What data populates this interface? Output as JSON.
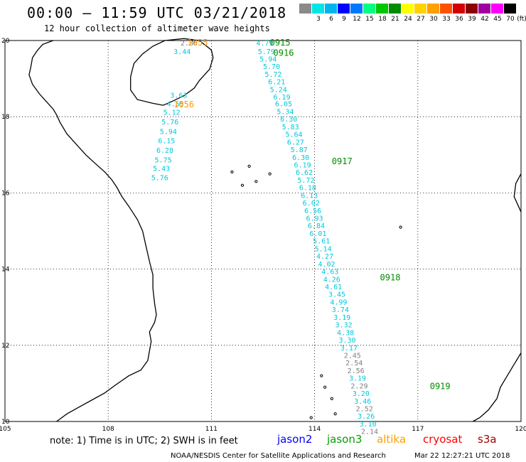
{
  "header": {
    "title": "00:00 – 11:59 UTC 03/21/2018",
    "subtitle": "12 hour collection of altimeter wave heights"
  },
  "colorbar": {
    "items": [
      {
        "label": "",
        "color": "#8a8a8a"
      },
      {
        "label": "3",
        "color": "#00e6e6"
      },
      {
        "label": "6",
        "color": "#00b4f0"
      },
      {
        "label": "9",
        "color": "#0000ff"
      },
      {
        "label": "12",
        "color": "#0078ff"
      },
      {
        "label": "15",
        "color": "#00ff80"
      },
      {
        "label": "18",
        "color": "#00c800"
      },
      {
        "label": "21",
        "color": "#008c00"
      },
      {
        "label": "24",
        "color": "#ffff00"
      },
      {
        "label": "27",
        "color": "#ffd200"
      },
      {
        "label": "30",
        "color": "#ffa000"
      },
      {
        "label": "33",
        "color": "#ff5000"
      },
      {
        "label": "36",
        "color": "#d20000"
      },
      {
        "label": "39",
        "color": "#8c0000"
      },
      {
        "label": "42",
        "color": "#a000a0"
      },
      {
        "label": "45",
        "color": "#ff00ff"
      },
      {
        "label": "70",
        "color": "#000000"
      }
    ],
    "unit": "(ft)"
  },
  "map": {
    "lon_ticks": [
      "105",
      "108",
      "111",
      "114",
      "117",
      "120"
    ],
    "lat_ticks": [
      "20",
      "18",
      "16",
      "14",
      "12",
      "10"
    ],
    "lon_range": [
      105,
      120
    ],
    "lat_range": [
      10,
      20
    ],
    "pass_labels": [
      {
        "text": "1055",
        "lon": 110.3,
        "lat": 19.87,
        "color": "#ff9900"
      },
      {
        "text": "1056",
        "lon": 109.9,
        "lat": 18.25,
        "color": "#ff9900"
      },
      {
        "text": "0915",
        "lon": 112.7,
        "lat": 19.87,
        "color": "#008c00"
      },
      {
        "text": "0916",
        "lon": 112.8,
        "lat": 19.6,
        "color": "#008c00"
      },
      {
        "text": "0917",
        "lon": 114.5,
        "lat": 16.75,
        "color": "#008c00"
      },
      {
        "text": "0918",
        "lon": 115.9,
        "lat": 13.7,
        "color": "#008c00"
      },
      {
        "text": "0919",
        "lon": 117.35,
        "lat": 10.85,
        "color": "#008c00"
      }
    ],
    "track_jason3_1": [
      {
        "v": "2.86",
        "lon": 110.1,
        "lat": 19.87,
        "c": "#808080"
      },
      {
        "v": "3.44",
        "lon": 109.9,
        "lat": 19.65,
        "c": "#00c8dc"
      },
      {
        "v": "3.63",
        "lon": 109.8,
        "lat": 18.5,
        "c": "#00c8dc"
      },
      {
        "v": "4.55",
        "lon": 109.7,
        "lat": 18.27,
        "c": "#00c8dc"
      },
      {
        "v": "5.12",
        "lon": 109.6,
        "lat": 18.05,
        "c": "#00c8dc"
      },
      {
        "v": "5.76",
        "lon": 109.55,
        "lat": 17.8,
        "c": "#00c8dc"
      },
      {
        "v": "5.94",
        "lon": 109.5,
        "lat": 17.55,
        "c": "#00c8dc"
      },
      {
        "v": "6.15",
        "lon": 109.45,
        "lat": 17.3,
        "c": "#00c8dc"
      },
      {
        "v": "6.28",
        "lon": 109.4,
        "lat": 17.05,
        "c": "#00c8dc"
      },
      {
        "v": "5.75",
        "lon": 109.35,
        "lat": 16.8,
        "c": "#00c8dc"
      },
      {
        "v": "5.43",
        "lon": 109.3,
        "lat": 16.58,
        "c": "#00c8dc"
      },
      {
        "v": "5.76",
        "lon": 109.25,
        "lat": 16.33,
        "c": "#00c8dc"
      }
    ],
    "track_jason3_2": [
      {
        "v": "4.79",
        "lon": 112.3,
        "lat": 19.87,
        "c": "#00c8dc"
      },
      {
        "v": "5.79",
        "lon": 112.35,
        "lat": 19.65,
        "c": "#00c8dc"
      },
      {
        "v": "5.94",
        "lon": 112.4,
        "lat": 19.45,
        "c": "#00c8dc"
      },
      {
        "v": "5.70",
        "lon": 112.5,
        "lat": 19.25,
        "c": "#00c8dc"
      },
      {
        "v": "5.72",
        "lon": 112.55,
        "lat": 19.05,
        "c": "#00c8dc"
      },
      {
        "v": "6.21",
        "lon": 112.65,
        "lat": 18.85,
        "c": "#00c8dc"
      },
      {
        "v": "5.24",
        "lon": 112.7,
        "lat": 18.65,
        "c": "#00c8dc"
      },
      {
        "v": "6.19",
        "lon": 112.8,
        "lat": 18.45,
        "c": "#00c8dc"
      },
      {
        "v": "6.05",
        "lon": 112.85,
        "lat": 18.27,
        "c": "#00c8dc"
      },
      {
        "v": "5.34",
        "lon": 112.9,
        "lat": 18.07,
        "c": "#00c8dc"
      },
      {
        "v": "6.30",
        "lon": 113.0,
        "lat": 17.87,
        "c": "#00c8dc"
      },
      {
        "v": "5.83",
        "lon": 113.05,
        "lat": 17.67,
        "c": "#00c8dc"
      },
      {
        "v": "5.64",
        "lon": 113.15,
        "lat": 17.47,
        "c": "#00c8dc"
      },
      {
        "v": "6.27",
        "lon": 113.2,
        "lat": 17.27,
        "c": "#00c8dc"
      },
      {
        "v": "5.87",
        "lon": 113.3,
        "lat": 17.07,
        "c": "#00c8dc"
      },
      {
        "v": "6.30",
        "lon": 113.35,
        "lat": 16.87,
        "c": "#00c8dc"
      },
      {
        "v": "6.19",
        "lon": 113.4,
        "lat": 16.67,
        "c": "#00c8dc"
      },
      {
        "v": "6.62",
        "lon": 113.45,
        "lat": 16.47,
        "c": "#00c8dc"
      },
      {
        "v": "5.72",
        "lon": 113.5,
        "lat": 16.27,
        "c": "#00c8dc"
      },
      {
        "v": "6.18",
        "lon": 113.55,
        "lat": 16.07,
        "c": "#00c8dc"
      },
      {
        "v": "6.13",
        "lon": 113.6,
        "lat": 15.87,
        "c": "#00c8dc"
      },
      {
        "v": "6.02",
        "lon": 113.65,
        "lat": 15.67,
        "c": "#00c8dc"
      },
      {
        "v": "6.56",
        "lon": 113.7,
        "lat": 15.47,
        "c": "#00c8dc"
      },
      {
        "v": "6.93",
        "lon": 113.75,
        "lat": 15.27,
        "c": "#00c8dc"
      },
      {
        "v": "6.84",
        "lon": 113.8,
        "lat": 15.07,
        "c": "#00c8dc"
      },
      {
        "v": "6.01",
        "lon": 113.85,
        "lat": 14.87,
        "c": "#00c8dc"
      },
      {
        "v": "5.61",
        "lon": 113.95,
        "lat": 14.67,
        "c": "#00c8dc"
      },
      {
        "v": "5.14",
        "lon": 114.0,
        "lat": 14.47,
        "c": "#00c8dc"
      },
      {
        "v": "4.27",
        "lon": 114.05,
        "lat": 14.27,
        "c": "#00c8dc"
      },
      {
        "v": "4.02",
        "lon": 114.1,
        "lat": 14.07,
        "c": "#00c8dc"
      },
      {
        "v": "4.63",
        "lon": 114.2,
        "lat": 13.87,
        "c": "#00c8dc"
      },
      {
        "v": "4.26",
        "lon": 114.25,
        "lat": 13.67,
        "c": "#00c8dc"
      },
      {
        "v": "4.61",
        "lon": 114.3,
        "lat": 13.47,
        "c": "#00c8dc"
      },
      {
        "v": "3.45",
        "lon": 114.4,
        "lat": 13.27,
        "c": "#00c8dc"
      },
      {
        "v": "4.99",
        "lon": 114.45,
        "lat": 13.07,
        "c": "#00c8dc"
      },
      {
        "v": "3.74",
        "lon": 114.5,
        "lat": 12.87,
        "c": "#00c8dc"
      },
      {
        "v": "3.19",
        "lon": 114.55,
        "lat": 12.67,
        "c": "#00c8dc"
      },
      {
        "v": "3.32",
        "lon": 114.6,
        "lat": 12.47,
        "c": "#00c8dc"
      },
      {
        "v": "4.38",
        "lon": 114.65,
        "lat": 12.27,
        "c": "#00c8dc"
      },
      {
        "v": "3.30",
        "lon": 114.7,
        "lat": 12.07,
        "c": "#00c8dc"
      },
      {
        "v": "3.17",
        "lon": 114.75,
        "lat": 11.87,
        "c": "#00c8dc"
      },
      {
        "v": "2.45",
        "lon": 114.85,
        "lat": 11.67,
        "c": "#808080"
      },
      {
        "v": "2.54",
        "lon": 114.9,
        "lat": 11.47,
        "c": "#808080"
      },
      {
        "v": "2.56",
        "lon": 114.95,
        "lat": 11.27,
        "c": "#808080"
      },
      {
        "v": "3.19",
        "lon": 115.0,
        "lat": 11.07,
        "c": "#00c8dc"
      },
      {
        "v": "2.29",
        "lon": 115.05,
        "lat": 10.87,
        "c": "#808080"
      },
      {
        "v": "3.20",
        "lon": 115.1,
        "lat": 10.67,
        "c": "#00c8dc"
      },
      {
        "v": "3.46",
        "lon": 115.15,
        "lat": 10.47,
        "c": "#00c8dc"
      },
      {
        "v": "2.52",
        "lon": 115.2,
        "lat": 10.27,
        "c": "#808080"
      },
      {
        "v": "3.26",
        "lon": 115.25,
        "lat": 10.07,
        "c": "#00c8dc"
      },
      {
        "v": "3.10",
        "lon": 115.3,
        "lat": 9.87,
        "c": "#00c8dc"
      },
      {
        "v": "2.14",
        "lon": 115.35,
        "lat": 9.67,
        "c": "#808080"
      }
    ]
  },
  "footer": {
    "note": "note:  1) Time is in UTC;  2) SWH is in feet",
    "satellites": [
      {
        "name": "jason2",
        "color": "#0000ff"
      },
      {
        "name": "jason3",
        "color": "#00a000"
      },
      {
        "name": "altika",
        "color": "#ffa000"
      },
      {
        "name": "cryosat",
        "color": "#ff0000"
      },
      {
        "name": "s3a",
        "color": "#a00000"
      }
    ],
    "credit": "NOAA/NESDIS Center for Satellite Applications and Research",
    "timestamp": "Mar 22 12:27:21 UTC 2018"
  }
}
